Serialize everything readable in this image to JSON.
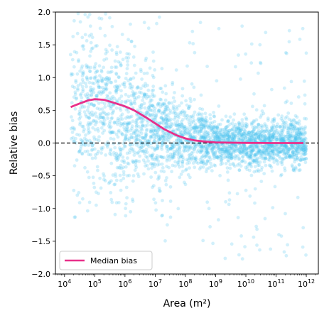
{
  "chart_data": {
    "type": "scatter",
    "xlabel": "Area (m²)",
    "ylabel": "Relative bias",
    "x_scale": "log",
    "xlim": [
      5000,
      2500000000000.0
    ],
    "ylim": [
      -2.0,
      2.0
    ],
    "x_ticks": [
      {
        "value": 10000.0,
        "base": "10",
        "exp": "4"
      },
      {
        "value": 100000.0,
        "base": "10",
        "exp": "5"
      },
      {
        "value": 1000000.0,
        "base": "10",
        "exp": "6"
      },
      {
        "value": 10000000.0,
        "base": "10",
        "exp": "7"
      },
      {
        "value": 100000000.0,
        "base": "10",
        "exp": "8"
      },
      {
        "value": 1000000000.0,
        "base": "10",
        "exp": "9"
      },
      {
        "value": 10000000000.0,
        "base": "10",
        "exp": "10"
      },
      {
        "value": 100000000000.0,
        "base": "10",
        "exp": "11"
      },
      {
        "value": 1000000000000.0,
        "base": "10",
        "exp": "12"
      }
    ],
    "y_ticks": [
      {
        "value": 2.0,
        "label": "2.0"
      },
      {
        "value": 1.5,
        "label": "1.5"
      },
      {
        "value": 1.0,
        "label": "1.0"
      },
      {
        "value": 0.5,
        "label": "0.5"
      },
      {
        "value": 0.0,
        "label": "0.0"
      },
      {
        "value": -0.5,
        "label": "−0.5"
      },
      {
        "value": -1.0,
        "label": "−1.0"
      },
      {
        "value": -1.5,
        "label": "−1.5"
      },
      {
        "value": -2.0,
        "label": "−2.0"
      }
    ],
    "reference_line": {
      "y": 0.0,
      "style": "dashed",
      "color": "#000000"
    },
    "scatter_color": "#4cc4f0",
    "scatter_opacity": 0.25,
    "series": [
      {
        "name": "Median bias",
        "type": "line",
        "color": "#e8308a",
        "x": [
          16000.0,
          30000.0,
          60000.0,
          100000.0,
          200000.0,
          400000.0,
          1000000.0,
          2000000.0,
          5000000.0,
          10000000.0,
          20000000.0,
          50000000.0,
          100000000.0,
          200000000.0,
          500000000.0,
          1000000000.0,
          3000000000.0,
          10000000000.0,
          30000000000.0,
          100000000000.0,
          300000000000.0,
          800000000000.0
        ],
        "y": [
          0.55,
          0.6,
          0.65,
          0.67,
          0.66,
          0.62,
          0.56,
          0.5,
          0.39,
          0.3,
          0.21,
          0.12,
          0.07,
          0.04,
          0.02,
          0.01,
          0.005,
          0.002,
          0.001,
          0.0,
          0.0,
          0.0
        ]
      }
    ],
    "legend": {
      "position": "lower-left",
      "entries": [
        "Median bias"
      ]
    }
  }
}
